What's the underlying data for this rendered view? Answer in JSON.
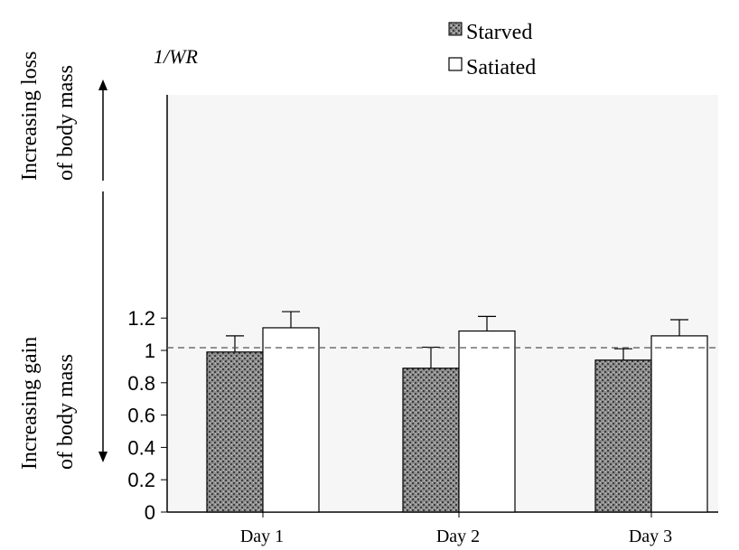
{
  "chart_data": {
    "type": "bar",
    "title": "",
    "xlabel": "",
    "ylabel": "1/WR",
    "ylim": [
      0,
      1.2
    ],
    "y_ticks": [
      "0",
      "0.2",
      "0.4",
      "0.6",
      "0.8",
      "1",
      "1.2"
    ],
    "categories": [
      "Day 1",
      "Day 2",
      "Day 3"
    ],
    "series": [
      {
        "name": "Starved",
        "values": [
          0.99,
          0.89,
          0.94
        ],
        "errors": [
          0.1,
          0.13,
          0.07
        ],
        "color": "#7a7a7a"
      },
      {
        "name": "Satiated",
        "values": [
          1.14,
          1.12,
          1.09
        ],
        "errors": [
          0.1,
          0.09,
          0.1
        ],
        "color": "#ffffff"
      }
    ],
    "reference_line": {
      "y": 1.0,
      "style": "dashed"
    },
    "legend_position": "top-center",
    "grid": false,
    "annotations": {
      "loss_top": "Increasing loss",
      "loss_bottom": "of body mass",
      "gain_top": "Increasing gain",
      "gain_bottom": "of body mass"
    }
  }
}
